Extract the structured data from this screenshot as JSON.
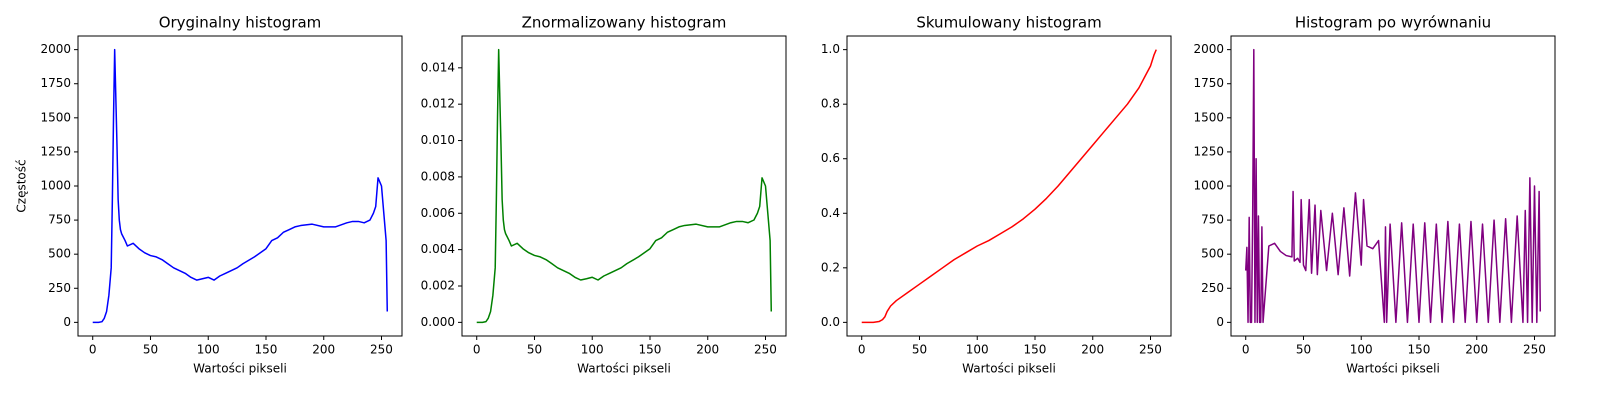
{
  "chart_data": [
    {
      "type": "line",
      "title": "Oryginalny histogram",
      "xlabel": "Wartości pikseli",
      "ylabel": "Częstość",
      "color": "#0000ff",
      "x": [
        0,
        5,
        8,
        10,
        12,
        14,
        16,
        17,
        18,
        19,
        21,
        22,
        23,
        24,
        25,
        28,
        30,
        35,
        40,
        45,
        50,
        55,
        60,
        65,
        70,
        75,
        80,
        85,
        90,
        95,
        100,
        105,
        110,
        115,
        120,
        125,
        130,
        140,
        150,
        155,
        160,
        165,
        170,
        175,
        180,
        190,
        200,
        210,
        220,
        225,
        230,
        235,
        240,
        243,
        245,
        247,
        250,
        252,
        254,
        255
      ],
      "values": [
        0,
        0,
        5,
        30,
        80,
        200,
        400,
        900,
        1500,
        2000,
        1300,
        900,
        750,
        680,
        650,
        600,
        560,
        580,
        540,
        510,
        490,
        480,
        460,
        430,
        400,
        380,
        360,
        330,
        310,
        320,
        330,
        310,
        340,
        360,
        380,
        400,
        430,
        480,
        540,
        600,
        620,
        660,
        680,
        700,
        710,
        720,
        700,
        700,
        730,
        740,
        740,
        730,
        750,
        800,
        850,
        1060,
        1000,
        800,
        600,
        80
      ],
      "xlim": [
        -12.75,
        267.75
      ],
      "ylim": [
        -100,
        2100
      ],
      "xticks": [
        0,
        50,
        100,
        150,
        200,
        250
      ],
      "yticks": [
        0,
        250,
        500,
        750,
        1000,
        1250,
        1500,
        1750,
        2000
      ]
    },
    {
      "type": "line",
      "title": "Znormalizowany histogram",
      "xlabel": "Wartości pikseli",
      "color": "#008000",
      "x": [
        0,
        5,
        8,
        10,
        12,
        14,
        16,
        17,
        18,
        19,
        21,
        22,
        23,
        24,
        25,
        28,
        30,
        35,
        40,
        45,
        50,
        55,
        60,
        65,
        70,
        75,
        80,
        85,
        90,
        95,
        100,
        105,
        110,
        115,
        120,
        125,
        130,
        140,
        150,
        155,
        160,
        165,
        170,
        175,
        180,
        190,
        200,
        210,
        220,
        225,
        230,
        235,
        240,
        243,
        245,
        247,
        250,
        252,
        254,
        255
      ],
      "values": [
        0,
        0,
        4e-05,
        0.00023,
        0.0006,
        0.0015,
        0.003,
        0.00675,
        0.01125,
        0.015,
        0.00975,
        0.00675,
        0.00563,
        0.0051,
        0.00488,
        0.0045,
        0.0042,
        0.00435,
        0.00405,
        0.00383,
        0.00368,
        0.0036,
        0.00345,
        0.00323,
        0.003,
        0.00285,
        0.0027,
        0.00248,
        0.00233,
        0.0024,
        0.00248,
        0.00233,
        0.00255,
        0.0027,
        0.00285,
        0.003,
        0.00323,
        0.0036,
        0.00405,
        0.0045,
        0.00465,
        0.00495,
        0.0051,
        0.00525,
        0.00533,
        0.0054,
        0.00525,
        0.00525,
        0.00548,
        0.00555,
        0.00555,
        0.00548,
        0.00563,
        0.006,
        0.00638,
        0.00795,
        0.0075,
        0.006,
        0.0045,
        0.0006
      ],
      "xlim": [
        -12.75,
        267.75
      ],
      "ylim": [
        -0.00075,
        0.01575
      ],
      "xticks": [
        0,
        50,
        100,
        150,
        200,
        250
      ],
      "yticks": [
        {
          "value": 0,
          "label": "0.000"
        },
        0.002,
        0.004,
        0.006,
        0.008,
        {
          "value": 0.01,
          "label": "0.010"
        },
        0.012,
        0.014
      ]
    },
    {
      "type": "line",
      "title": "Skumulowany histogram",
      "xlabel": "Wartości pikseli",
      "color": "#ff0000",
      "x": [
        0,
        10,
        15,
        18,
        20,
        22,
        25,
        30,
        40,
        50,
        60,
        70,
        80,
        90,
        100,
        110,
        120,
        130,
        140,
        150,
        160,
        170,
        180,
        190,
        200,
        210,
        220,
        230,
        240,
        245,
        250,
        253,
        255
      ],
      "values": [
        0,
        0,
        0.003,
        0.01,
        0.02,
        0.04,
        0.06,
        0.08,
        0.11,
        0.14,
        0.17,
        0.2,
        0.23,
        0.255,
        0.28,
        0.3,
        0.325,
        0.35,
        0.38,
        0.415,
        0.455,
        0.5,
        0.55,
        0.6,
        0.65,
        0.7,
        0.75,
        0.8,
        0.86,
        0.9,
        0.94,
        0.98,
        1.0
      ],
      "xlim": [
        -12.75,
        267.75
      ],
      "ylim": [
        -0.05,
        1.05
      ],
      "xticks": [
        0,
        50,
        100,
        150,
        200,
        250
      ],
      "yticks": [
        {
          "value": 0,
          "label": "0.0"
        },
        0.2,
        0.4,
        0.6,
        0.8,
        {
          "value": 1,
          "label": "1.0"
        }
      ]
    },
    {
      "type": "line",
      "title": "Histogram po wyrównaniu",
      "xlabel": "Wartości pikseli",
      "color": "#800080",
      "x": [
        0,
        1,
        2,
        3,
        4,
        5,
        6,
        7,
        8,
        9,
        10,
        11,
        12,
        13,
        14,
        15,
        20,
        25,
        30,
        35,
        40,
        41,
        42,
        45,
        47,
        48,
        50,
        52,
        55,
        57,
        60,
        62,
        65,
        70,
        75,
        80,
        85,
        90,
        95,
        100,
        102,
        105,
        110,
        115,
        120,
        121,
        122,
        125,
        130,
        135,
        140,
        145,
        150,
        155,
        160,
        165,
        170,
        175,
        180,
        185,
        190,
        195,
        200,
        205,
        210,
        215,
        220,
        225,
        230,
        235,
        240,
        242,
        244,
        246,
        248,
        250,
        252,
        254,
        255
      ],
      "values": [
        380,
        550,
        0,
        770,
        0,
        0,
        770,
        2000,
        0,
        1200,
        0,
        780,
        0,
        0,
        700,
        0,
        560,
        580,
        520,
        490,
        480,
        960,
        450,
        470,
        440,
        900,
        420,
        380,
        900,
        360,
        860,
        350,
        820,
        380,
        800,
        350,
        840,
        340,
        950,
        420,
        900,
        560,
        540,
        600,
        0,
        700,
        0,
        720,
        0,
        730,
        0,
        720,
        0,
        730,
        0,
        720,
        0,
        740,
        0,
        720,
        0,
        740,
        0,
        720,
        0,
        750,
        0,
        760,
        0,
        780,
        0,
        820,
        0,
        1060,
        0,
        1000,
        0,
        960,
        80
      ],
      "xlim": [
        -12.75,
        267.75
      ],
      "ylim": [
        -100,
        2100
      ],
      "xticks": [
        0,
        50,
        100,
        150,
        200,
        250
      ],
      "yticks": [
        0,
        250,
        500,
        750,
        1000,
        1250,
        1500,
        1750,
        2000
      ]
    }
  ]
}
